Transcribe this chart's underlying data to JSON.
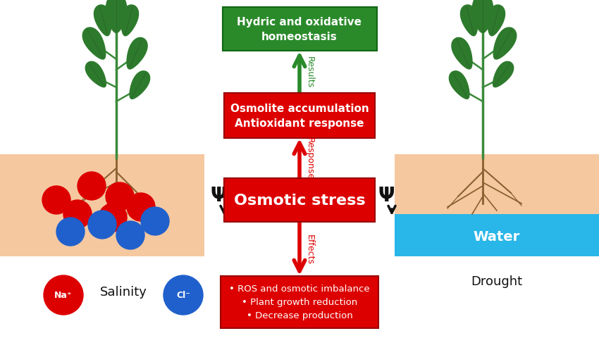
{
  "bg_color": "#ffffff",
  "soil_color": "#f5c8a0",
  "water_color": "#29b6e8",
  "red_color": "#dd0000",
  "green_color": "#2a8a2a",
  "black_color": "#111111",
  "white_color": "#ffffff",
  "blue_ion_color": "#2060cc",
  "brown_color": "#7a4a10",
  "leaf_green": "#2d7a2d",
  "leaf_light": "#4aaa30",
  "osmotic_stress_text": "Osmotic stress",
  "osmotic_response_text": "Osmolite accumulation\nAntioxidant response",
  "homeostasis_text": "Hydric and oxidative\nhomeostasis",
  "effects_box_text": "• ROS and osmotic imbalance\n• Plant growth reduction\n• Decrease production",
  "results_label": "Results",
  "response_label": "Response",
  "effects_label": "Effects",
  "salinity_label": "Salinity",
  "drought_label": "Drought",
  "water_label": "Water",
  "psi_symbol": "Ψ"
}
